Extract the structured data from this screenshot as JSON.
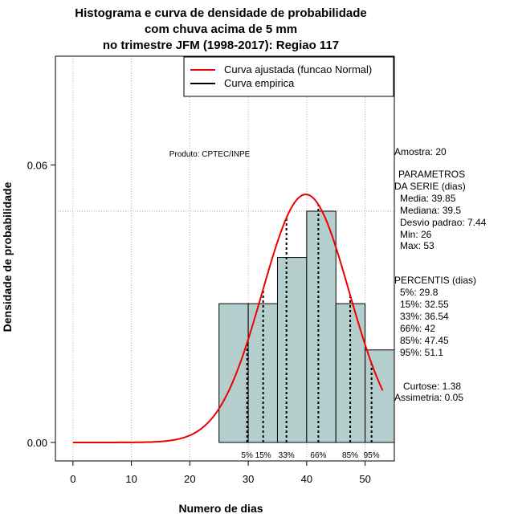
{
  "chart_data": {
    "type": "histogram",
    "title_lines": [
      "Histograma e curva de densidade de probabilidade",
      "com chuva acima de 5 mm",
      "no trimestre JFM (1998-2017): Regiao 117"
    ],
    "xlabel": "Numero de dias",
    "ylabel": "Densidade de probabilidade",
    "xlim": [
      -3,
      55
    ],
    "ylim": [
      -0.004,
      0.0835
    ],
    "x_ticks": [
      0,
      10,
      20,
      30,
      40,
      50
    ],
    "y_ticks": [
      0.0,
      0.06
    ],
    "y_tick_labels": [
      "0.00",
      "0.06"
    ],
    "bars": [
      {
        "x0": 25,
        "x1": 30,
        "density": 0.03
      },
      {
        "x0": 30,
        "x1": 35,
        "density": 0.03
      },
      {
        "x0": 35,
        "x1": 40,
        "density": 0.04
      },
      {
        "x0": 40,
        "x1": 45,
        "density": 0.05
      },
      {
        "x0": 45,
        "x1": 50,
        "density": 0.03
      },
      {
        "x0": 50,
        "x1": 55,
        "density": 0.02
      }
    ],
    "normal_fit": {
      "mean": 39.85,
      "sd": 7.44,
      "x_from": 0,
      "x_to": 53
    },
    "reference_lines": {
      "vertical_grid": [
        0,
        10,
        20,
        30,
        40,
        50
      ],
      "horizontal_y": 0.05
    },
    "percentiles": [
      {
        "label": "5%",
        "value": 29.8
      },
      {
        "label": "15%",
        "value": 32.55
      },
      {
        "label": "33%",
        "value": 36.54
      },
      {
        "label": "66%",
        "value": 42
      },
      {
        "label": "85%",
        "value": 47.45
      },
      {
        "label": "95%",
        "value": 51.1
      }
    ],
    "legend": [
      {
        "label": "Curva ajustada (funcao Normal)",
        "color": "#ee0000"
      },
      {
        "label": "Curva empirica",
        "color": "#000000"
      }
    ],
    "legend_position": "top-right",
    "product_label": "Produto: CPTEC/INPE",
    "colors": {
      "bar_fill": "#b4cdcd",
      "curve": "#ee0000",
      "grid": "#b0b0b0"
    }
  },
  "stats_panel": {
    "sample": "Amostra: 20",
    "params_title_1": "PARAMETROS",
    "params_title_2": "DA SERIE (dias)",
    "media": "Media: 39.85",
    "mediana": "Mediana: 39.5",
    "desvio": "Desvio padrao: 7.44",
    "min": "Min: 26",
    "max": "Max: 53",
    "percentis_title": "PERCENTIS (dias)",
    "p5": "5%: 29.8",
    "p15": "15%: 32.55",
    "p33": "33%: 36.54",
    "p66": "66%: 42",
    "p85": "85%: 47.45",
    "p95": "95%: 51.1",
    "curtose": "Curtose: 1.38",
    "assimetria": "Assimetria: 0.05"
  }
}
